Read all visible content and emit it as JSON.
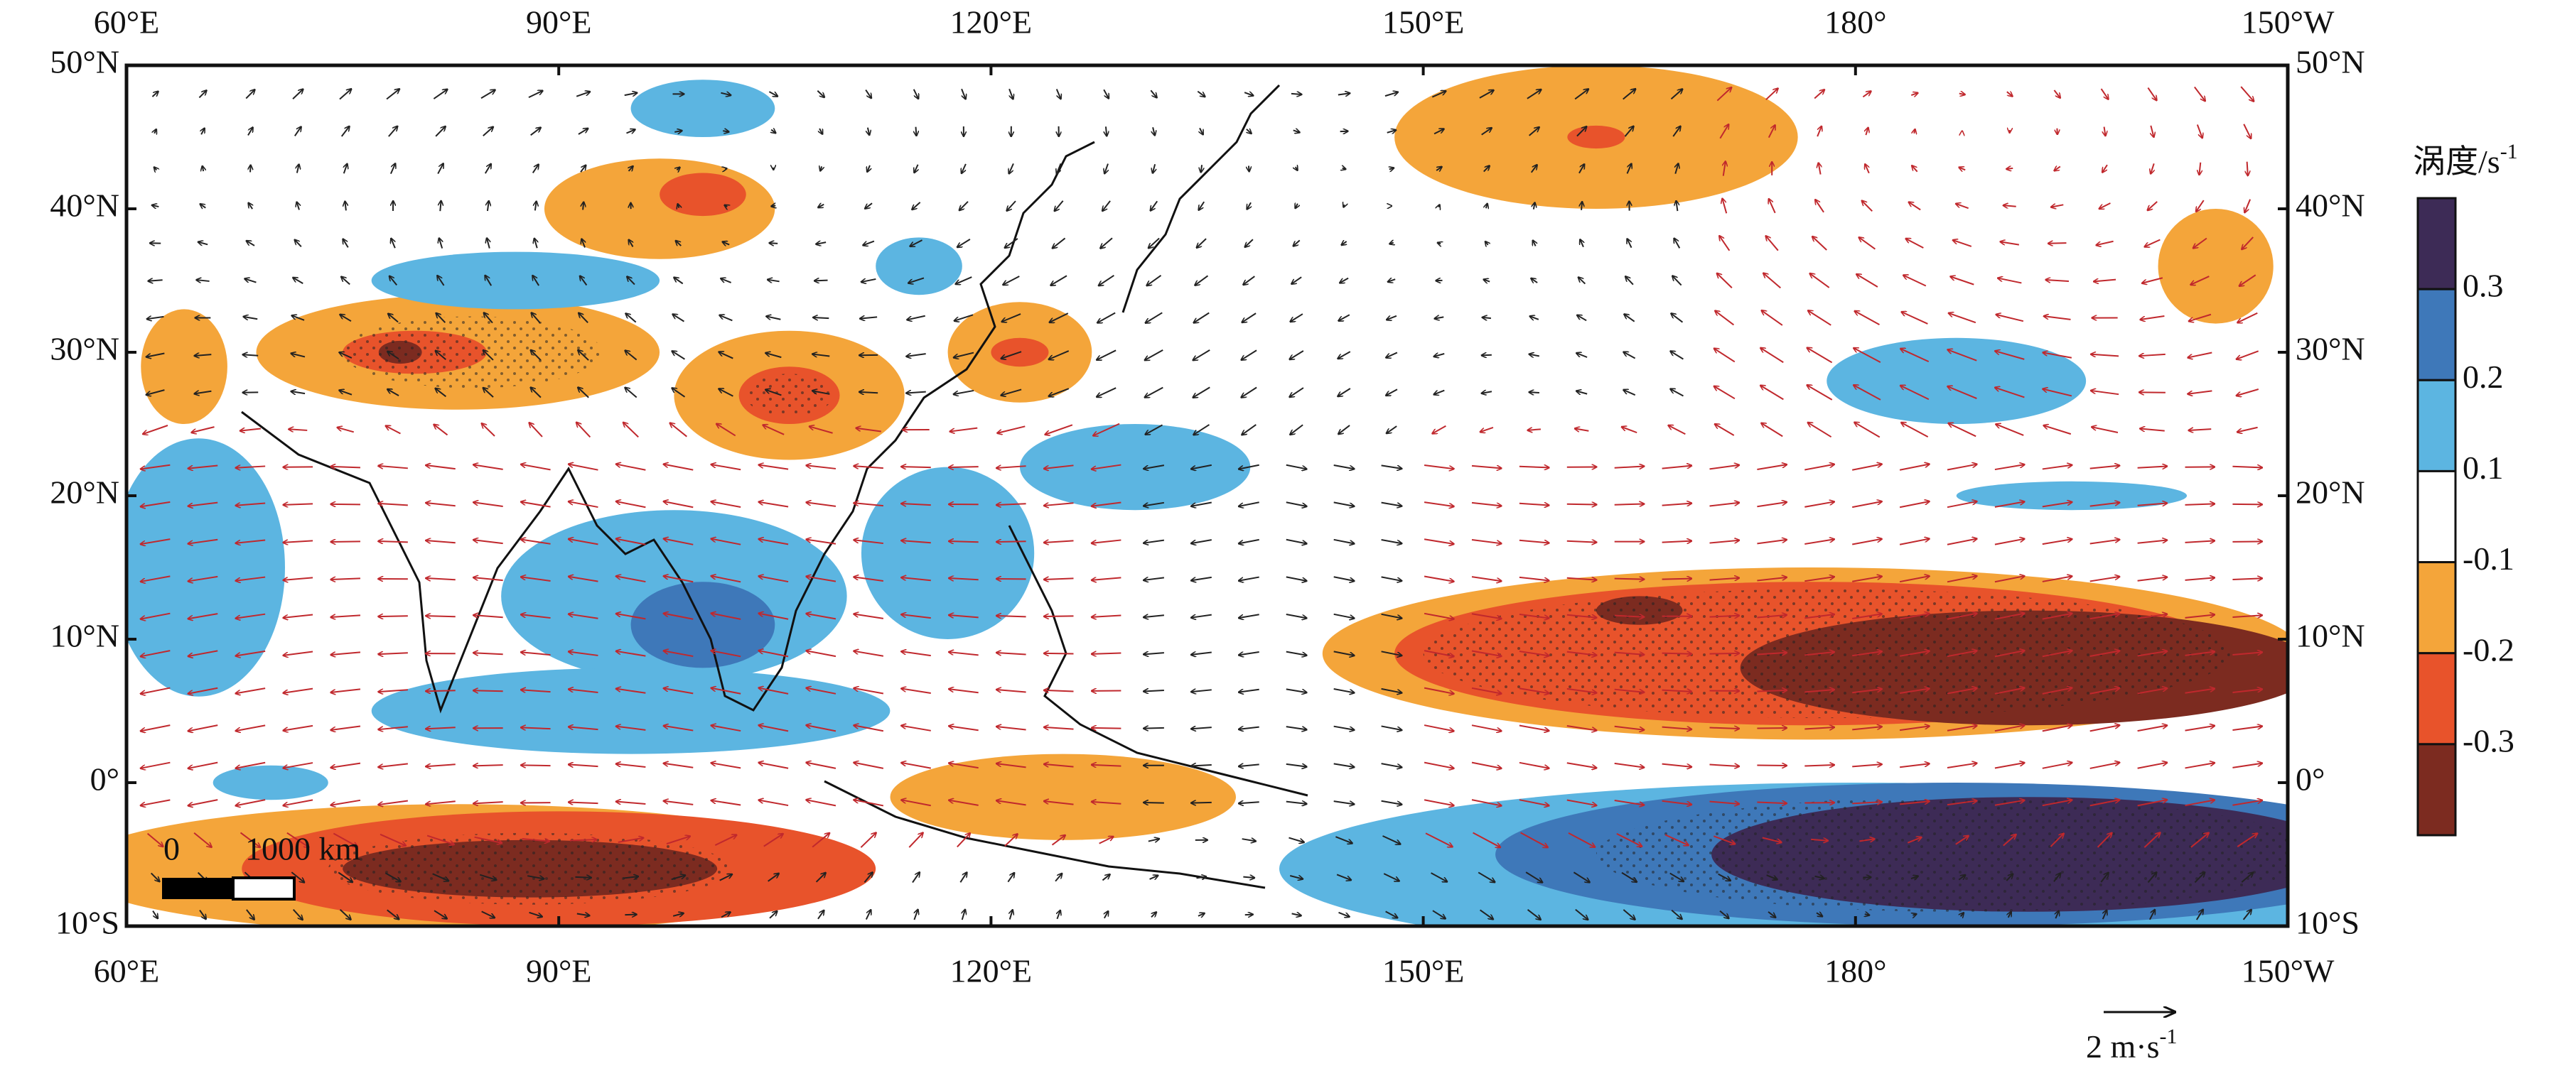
{
  "map": {
    "lon_labels": [
      "60°E",
      "90°E",
      "120°E",
      "150°E",
      "180°",
      "150°W"
    ],
    "lat_labels": [
      "50°N",
      "40°N",
      "30°N",
      "20°N",
      "10°N",
      "0°",
      "10°S"
    ],
    "colorbar": {
      "title": "涡度/s",
      "title_exponent": "-1",
      "colors": [
        "#3d2b56",
        "#3e78b9",
        "#5cb5e1",
        "#ffffff",
        "#f4a53a",
        "#e8532b",
        "#7c2b20"
      ],
      "labels": [
        "0.3",
        "0.2",
        "0.1",
        "-0.1",
        "-0.2",
        "-0.3"
      ]
    },
    "scale_bar": {
      "start": "0",
      "end": "1000 km"
    },
    "reference_vector": {
      "label": "2 m·s",
      "exponent": "-1"
    }
  }
}
